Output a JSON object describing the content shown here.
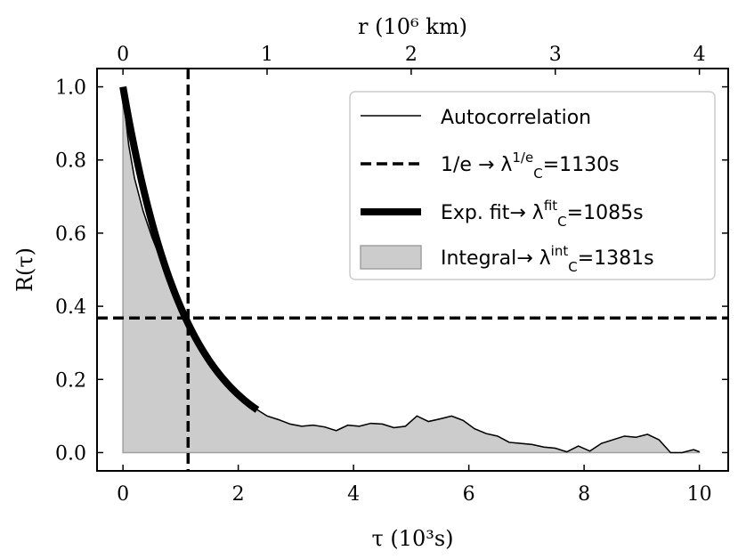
{
  "chart_data": {
    "type": "area",
    "xlabel": "τ (10³s)",
    "ylabel": "R(τ)",
    "top_xlabel": "r (10⁶ km)",
    "xlim": [
      -0.45,
      10.5
    ],
    "ylim": [
      -0.05,
      1.05
    ],
    "x_ticks": [
      0,
      2,
      4,
      6,
      8,
      10
    ],
    "x_tick_labels": [
      "0",
      "2",
      "4",
      "6",
      "8",
      "10"
    ],
    "y_ticks": [
      0.0,
      0.2,
      0.4,
      0.6,
      0.8,
      1.0
    ],
    "y_tick_labels": [
      "0.0",
      "0.2",
      "0.4",
      "0.6",
      "0.8",
      "1.0"
    ],
    "top_x_ticks": [
      0,
      1,
      2,
      3,
      4
    ],
    "top_x_tick_positions": [
      0,
      2.5,
      5,
      7.5,
      10
    ],
    "top_x_tick_labels": [
      "0",
      "1",
      "2",
      "3",
      "4"
    ],
    "legend_position": "top-right",
    "grid": false,
    "series": [
      {
        "name": "Autocorrelation",
        "style": "thin-line",
        "color": "#000000",
        "x": [
          0,
          0.1,
          0.2,
          0.35,
          0.5,
          0.7,
          0.9,
          1.1,
          1.3,
          1.5,
          1.7,
          1.9,
          2.1,
          2.3,
          2.5,
          2.7,
          2.9,
          3.1,
          3.3,
          3.5,
          3.7,
          3.9,
          4.1,
          4.3,
          4.5,
          4.7,
          4.9,
          5.1,
          5.3,
          5.5,
          5.7,
          5.9,
          6.1,
          6.3,
          6.5,
          6.7,
          6.9,
          7.1,
          7.3,
          7.5,
          7.7,
          7.9,
          8.1,
          8.3,
          8.5,
          8.7,
          8.9,
          9.1,
          9.3,
          9.5,
          9.7,
          9.9,
          10.0
        ],
        "values": [
          0.98,
          0.84,
          0.75,
          0.66,
          0.59,
          0.51,
          0.44,
          0.37,
          0.31,
          0.26,
          0.215,
          0.175,
          0.145,
          0.12,
          0.1,
          0.09,
          0.078,
          0.072,
          0.075,
          0.07,
          0.06,
          0.075,
          0.072,
          0.08,
          0.078,
          0.068,
          0.072,
          0.1,
          0.085,
          0.092,
          0.1,
          0.088,
          0.065,
          0.052,
          0.045,
          0.028,
          0.025,
          0.022,
          0.015,
          0.012,
          0.002,
          0.018,
          0.004,
          0.025,
          0.035,
          0.045,
          0.042,
          0.05,
          0.035,
          0.0,
          0.0,
          0.008,
          0.002
        ]
      },
      {
        "name": "1/e → λ_C^{1/e}=1130s",
        "style": "dashed",
        "color": "#000000",
        "vertical_x": 1.13,
        "horizontal_y": 0.3679
      },
      {
        "name": "Exp. fit→ λ_C^fit=1085s",
        "style": "thick-line",
        "color": "#000000",
        "function": "exp(-x/1.085)",
        "x_range": [
          0,
          2.33
        ]
      },
      {
        "name": "Integral→ λ_C^int=1381s",
        "style": "fill",
        "color": "#cccccc"
      }
    ]
  },
  "legend": {
    "items": [
      {
        "main": "Autocorrelation"
      },
      {
        "main": "1/e → λ",
        "sub": "C",
        "sup": "1/e",
        "tail": "=1130s"
      },
      {
        "main": "Exp. fit→ λ",
        "sub": "C",
        "sup": "fit",
        "tail": "=1085s"
      },
      {
        "main": "Integral→ λ",
        "sub": "C",
        "sup": "int",
        "tail": "=1381s"
      }
    ]
  }
}
